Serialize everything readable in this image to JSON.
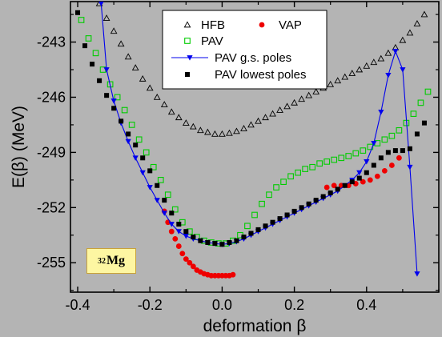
{
  "chart_data": {
    "type": "scatter",
    "xlabel": "deformation β",
    "ylabel": "E(β) (MeV)",
    "xlim": [
      -0.42,
      0.6
    ],
    "ylim": [
      -256.6,
      -240.8
    ],
    "xticks": [
      -0.4,
      -0.2,
      0.0,
      0.2,
      0.4
    ],
    "xtick_labels": [
      "-0.4",
      "-0.2",
      "0.0",
      "0.2",
      "0.4"
    ],
    "yticks": [
      -255,
      -252,
      -249,
      -246,
      -243
    ],
    "ytick_labels": [
      "-255",
      "-252",
      "-249",
      "-246",
      "-243"
    ],
    "grid": false,
    "legend_position": "top-right",
    "annotation": {
      "mass": "32",
      "element": "Mg"
    },
    "series": [
      {
        "name": "HFB",
        "marker": "open-triangle",
        "color": "#000000",
        "x": [
          -0.34,
          -0.32,
          -0.3,
          -0.28,
          -0.26,
          -0.24,
          -0.22,
          -0.2,
          -0.18,
          -0.16,
          -0.14,
          -0.12,
          -0.1,
          -0.08,
          -0.06,
          -0.04,
          -0.02,
          0.0,
          0.02,
          0.04,
          0.06,
          0.08,
          0.1,
          0.12,
          0.14,
          0.16,
          0.18,
          0.2,
          0.22,
          0.24,
          0.26,
          0.28,
          0.3,
          0.32,
          0.34,
          0.36,
          0.38,
          0.4,
          0.42,
          0.44,
          0.46,
          0.48,
          0.5,
          0.52,
          0.54,
          0.56
        ],
        "y": [
          -240.9,
          -241.7,
          -242.4,
          -243.1,
          -243.8,
          -244.4,
          -245.0,
          -245.5,
          -246.0,
          -246.4,
          -246.8,
          -247.1,
          -247.4,
          -247.6,
          -247.8,
          -247.9,
          -248.0,
          -248.0,
          -247.95,
          -247.85,
          -247.7,
          -247.5,
          -247.3,
          -247.1,
          -246.9,
          -246.7,
          -246.5,
          -246.3,
          -246.1,
          -245.9,
          -245.7,
          -245.5,
          -245.3,
          -245.1,
          -244.9,
          -244.7,
          -244.5,
          -244.3,
          -244.1,
          -243.9,
          -243.6,
          -243.3,
          -242.9,
          -242.5,
          -242.0,
          -241.5
        ]
      },
      {
        "name": "VAP",
        "marker": "filled-circle",
        "color": "#ee0000",
        "x": [
          -0.16,
          -0.15,
          -0.14,
          -0.13,
          -0.12,
          -0.11,
          -0.1,
          -0.09,
          -0.08,
          -0.07,
          -0.06,
          -0.05,
          -0.04,
          -0.03,
          -0.02,
          -0.01,
          0.0,
          0.01,
          0.02,
          0.03,
          0.29,
          0.31,
          0.33,
          0.35,
          0.37,
          0.39,
          0.41,
          0.43,
          0.45,
          0.47,
          0.49
        ],
        "y": [
          -252.2,
          -252.8,
          -253.3,
          -253.7,
          -254.1,
          -254.5,
          -254.8,
          -255.0,
          -255.2,
          -255.4,
          -255.5,
          -255.6,
          -255.65,
          -255.7,
          -255.7,
          -255.7,
          -255.7,
          -255.7,
          -255.7,
          -255.65,
          -250.9,
          -250.8,
          -250.8,
          -250.8,
          -250.7,
          -250.6,
          -250.5,
          -250.3,
          -250.0,
          -249.7,
          -249.3
        ]
      },
      {
        "name": "PAV",
        "marker": "open-square",
        "color": "#00cc00",
        "x": [
          -0.39,
          -0.37,
          -0.35,
          -0.33,
          -0.31,
          -0.29,
          -0.27,
          -0.25,
          -0.23,
          -0.21,
          -0.19,
          -0.17,
          -0.15,
          -0.13,
          -0.11,
          -0.09,
          -0.07,
          -0.05,
          -0.03,
          -0.01,
          0.01,
          0.03,
          0.05,
          0.07,
          0.09,
          0.11,
          0.13,
          0.15,
          0.17,
          0.19,
          0.21,
          0.23,
          0.25,
          0.27,
          0.29,
          0.31,
          0.33,
          0.35,
          0.37,
          0.39,
          0.41,
          0.43,
          0.45,
          0.47,
          0.49,
          0.51,
          0.53,
          0.55,
          0.57
        ],
        "y": [
          -241.8,
          -242.8,
          -243.6,
          -244.5,
          -245.3,
          -246.0,
          -246.7,
          -247.5,
          -248.3,
          -249.0,
          -249.8,
          -250.5,
          -251.3,
          -252.1,
          -252.8,
          -253.3,
          -253.6,
          -253.8,
          -253.9,
          -253.95,
          -253.95,
          -253.8,
          -253.5,
          -253.0,
          -252.4,
          -251.8,
          -251.3,
          -250.9,
          -250.6,
          -250.3,
          -250.1,
          -249.9,
          -249.8,
          -249.6,
          -249.5,
          -249.4,
          -249.3,
          -249.2,
          -249.05,
          -248.9,
          -248.7,
          -248.5,
          -248.3,
          -248.1,
          -247.8,
          -247.4,
          -246.9,
          -246.3,
          -245.7
        ]
      },
      {
        "name": "PAV g.s. poles",
        "marker": "filled-down-triangle-line",
        "color": "#0000ee",
        "x": [
          -0.335,
          -0.32,
          -0.3,
          -0.28,
          -0.26,
          -0.24,
          -0.22,
          -0.2,
          -0.18,
          -0.16,
          -0.14,
          -0.12,
          -0.1,
          -0.08,
          -0.06,
          -0.04,
          -0.02,
          0.0,
          0.02,
          0.04,
          0.06,
          0.08,
          0.1,
          0.12,
          0.14,
          0.16,
          0.18,
          0.2,
          0.22,
          0.24,
          0.26,
          0.28,
          0.3,
          0.32,
          0.34,
          0.36,
          0.38,
          0.4,
          0.42,
          0.44,
          0.46,
          0.48,
          0.5,
          0.52,
          0.54
        ],
        "y": [
          -240.9,
          -244.5,
          -246.2,
          -247.4,
          -248.4,
          -249.3,
          -250.1,
          -250.9,
          -251.6,
          -252.3,
          -252.9,
          -253.3,
          -253.55,
          -253.7,
          -253.8,
          -253.9,
          -253.95,
          -254.0,
          -253.95,
          -253.85,
          -253.7,
          -253.5,
          -253.3,
          -253.1,
          -252.9,
          -252.7,
          -252.5,
          -252.3,
          -252.1,
          -251.9,
          -251.7,
          -251.5,
          -251.3,
          -251.1,
          -250.8,
          -250.5,
          -250.1,
          -249.5,
          -248.5,
          -246.8,
          -244.8,
          -243.5,
          -244.5,
          -249.8,
          -255.6
        ]
      },
      {
        "name": "PAV lowest poles",
        "marker": "filled-square",
        "color": "#000000",
        "x": [
          -0.4,
          -0.38,
          -0.36,
          -0.34,
          -0.32,
          -0.3,
          -0.28,
          -0.26,
          -0.24,
          -0.22,
          -0.2,
          -0.18,
          -0.16,
          -0.14,
          -0.12,
          -0.1,
          -0.08,
          -0.06,
          -0.04,
          -0.02,
          0.0,
          0.02,
          0.04,
          0.06,
          0.08,
          0.1,
          0.12,
          0.14,
          0.16,
          0.18,
          0.2,
          0.22,
          0.24,
          0.26,
          0.28,
          0.3,
          0.32,
          0.34,
          0.36,
          0.38,
          0.4,
          0.42,
          0.44,
          0.46,
          0.48,
          0.5,
          0.52,
          0.54,
          0.56
        ],
        "y": [
          -241.4,
          -243.2,
          -244.2,
          -245.1,
          -245.9,
          -246.6,
          -247.3,
          -248.0,
          -248.6,
          -249.3,
          -250.0,
          -250.8,
          -251.6,
          -252.3,
          -252.9,
          -253.3,
          -253.6,
          -253.8,
          -253.9,
          -253.95,
          -254.0,
          -253.9,
          -253.8,
          -253.6,
          -253.4,
          -253.2,
          -253.0,
          -252.8,
          -252.6,
          -252.4,
          -252.2,
          -252.0,
          -251.8,
          -251.6,
          -251.4,
          -251.2,
          -251.0,
          -250.8,
          -250.6,
          -250.4,
          -250.1,
          -249.7,
          -249.3,
          -249.0,
          -248.9,
          -248.9,
          -248.8,
          -248.0,
          -247.4
        ]
      }
    ]
  }
}
